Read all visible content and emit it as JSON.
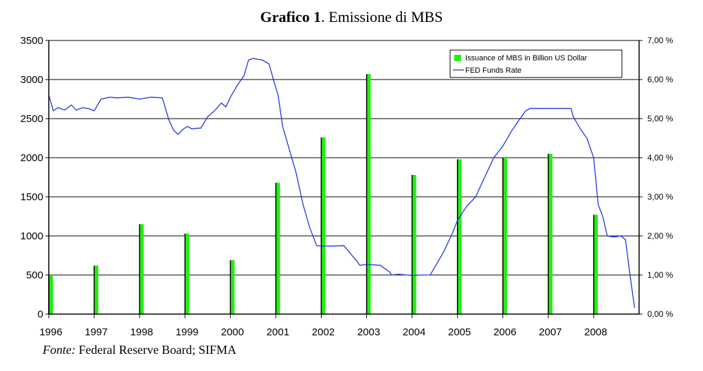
{
  "title_bold": "Grafico 1",
  "title_rest": ". Emissione di MBS",
  "source_label": "Fonte:",
  "source_text": " Federal Reserve Board; SIFMA",
  "colors": {
    "bar": "#22ee11",
    "bar_edge": "#000000",
    "line": "#2233dd",
    "grid": "#000000"
  },
  "chart_data": {
    "type": "bar",
    "legend_position": "top-right",
    "grid": true,
    "categories": [
      "1996",
      "1997",
      "1998",
      "1999",
      "2000",
      "2001",
      "2002",
      "2003",
      "2004",
      "2005",
      "2006",
      "2007",
      "2008"
    ],
    "series": [
      {
        "name": "Issuance of MBS in Billion US Dollar",
        "type": "bar",
        "axis": "left",
        "values": [
          500,
          620,
          1150,
          1030,
          690,
          1680,
          2260,
          3070,
          1780,
          1980,
          2000,
          2050,
          1270
        ]
      },
      {
        "name": "FED Funds Rate",
        "type": "line",
        "axis": "right",
        "x": [
          1996.0,
          1996.1,
          1996.2,
          1996.35,
          1996.5,
          1996.6,
          1996.75,
          1996.9,
          1997.0,
          1997.15,
          1997.35,
          1997.5,
          1997.75,
          1998.0,
          1998.25,
          1998.5,
          1998.65,
          1998.75,
          1998.85,
          1998.95,
          1999.05,
          1999.15,
          1999.35,
          1999.5,
          1999.65,
          1999.8,
          1999.9,
          2000.0,
          2000.15,
          2000.3,
          2000.4,
          2000.5,
          2000.7,
          2000.85,
          2000.95,
          2001.05,
          2001.15,
          2001.3,
          2001.45,
          2001.6,
          2001.75,
          2001.9,
          2002.0,
          2002.2,
          2002.5,
          2002.8,
          2002.85,
          2003.0,
          2003.3,
          2003.5,
          2003.55,
          2003.7,
          2004.0,
          2004.2,
          2004.4,
          2004.5,
          2004.7,
          2004.9,
          2005.0,
          2005.2,
          2005.4,
          2005.6,
          2005.8,
          2006.0,
          2006.2,
          2006.35,
          2006.5,
          2006.6,
          2006.8,
          2007.0,
          2007.3,
          2007.5,
          2007.55,
          2007.7,
          2007.85,
          2008.0,
          2008.1,
          2008.2,
          2008.3,
          2008.45,
          2008.6,
          2008.7,
          2008.8,
          2008.9
        ],
        "values": [
          5.6,
          5.2,
          5.28,
          5.22,
          5.35,
          5.22,
          5.28,
          5.25,
          5.2,
          5.5,
          5.55,
          5.53,
          5.55,
          5.5,
          5.55,
          5.53,
          4.95,
          4.7,
          4.6,
          4.72,
          4.8,
          4.74,
          4.76,
          5.05,
          5.2,
          5.4,
          5.3,
          5.55,
          5.85,
          6.1,
          6.5,
          6.54,
          6.5,
          6.4,
          5.98,
          5.6,
          4.8,
          4.2,
          3.6,
          2.8,
          2.2,
          1.75,
          1.74,
          1.74,
          1.75,
          1.33,
          1.25,
          1.27,
          1.25,
          1.08,
          1.0,
          1.02,
          0.99,
          1.0,
          1.0,
          1.2,
          1.6,
          2.1,
          2.4,
          2.75,
          3.0,
          3.5,
          4.0,
          4.3,
          4.7,
          4.95,
          5.2,
          5.26,
          5.26,
          5.26,
          5.26,
          5.26,
          5.05,
          4.75,
          4.5,
          4.0,
          2.8,
          2.5,
          2.0,
          1.97,
          2.0,
          1.9,
          1.0,
          0.16
        ]
      }
    ],
    "y_left": {
      "ylim": [
        0,
        3500
      ],
      "ticks": [
        "0",
        "500",
        "1000",
        "1500",
        "2000",
        "2500",
        "3000",
        "3500"
      ]
    },
    "y_right": {
      "ylim": [
        0,
        7
      ],
      "ticks": [
        "0,00 %",
        "1,00 %",
        "2,00 %",
        "3,00 %",
        "4,00 %",
        "5,00 %",
        "6,00 %",
        "7,00 %"
      ]
    },
    "xlim": [
      1996,
      2009
    ]
  }
}
